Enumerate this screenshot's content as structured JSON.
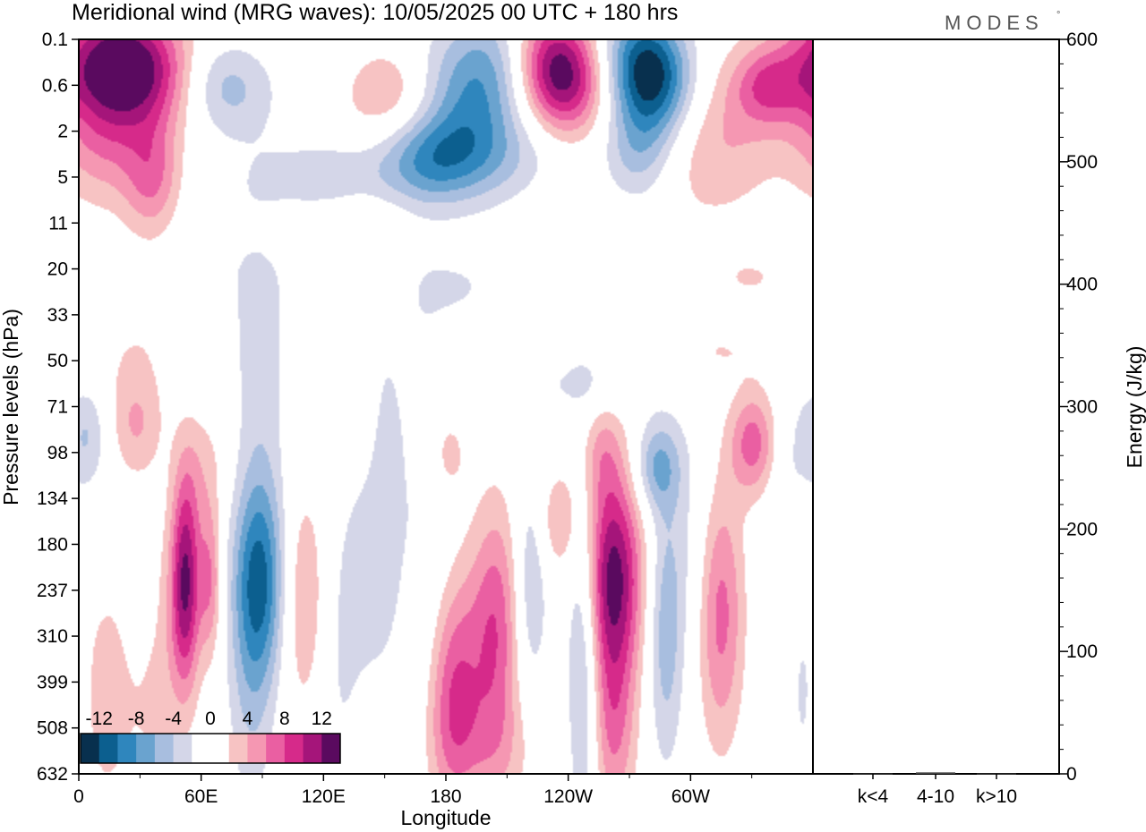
{
  "chart_data": {
    "type": "contour",
    "title": "Meridional wind (MRG waves):  10/05/2025  00 UTC  + 180 hrs",
    "brand": "MODES",
    "brand_mark": "°",
    "xlabel": "Longitude",
    "ylabel": "Pressure levels (hPa)",
    "y2label": "Energy (J/kg)",
    "x_ticks": [
      "0",
      "60E",
      "120E",
      "180",
      "120W",
      "60W"
    ],
    "x_tick_lon": [
      0,
      60,
      120,
      180,
      240,
      300
    ],
    "xlim": [
      0,
      360
    ],
    "y_levels": [
      "0.1",
      "0.6",
      "2",
      "5",
      "11",
      "20",
      "33",
      "50",
      "71",
      "98",
      "134",
      "180",
      "237",
      "310",
      "399",
      "508",
      "632"
    ],
    "energy_ticks": [
      "0",
      "100",
      "200",
      "300",
      "400",
      "500",
      "600"
    ],
    "energy_lim": [
      0,
      600
    ],
    "energy_categories": [
      "k<4",
      "4-10",
      "k>10"
    ],
    "energy_values": [
      0.3,
      1.2,
      0.3
    ],
    "colorbar_labels": [
      "-12",
      "-8",
      "-4",
      "0",
      "4",
      "8",
      "12"
    ],
    "colorbar_colors": [
      "#08304e",
      "#0c5f8f",
      "#2f86bd",
      "#6aa3cf",
      "#a8bedf",
      "#d4d6e8",
      "#ffffff",
      "#ffffff",
      "#f7c3c3",
      "#f597b2",
      "#ea5fa2",
      "#d62a8a",
      "#a5157a",
      "#5a0a5f"
    ],
    "levels_note": "",
    "features": [
      {
        "lon": 22,
        "lev": 0.55,
        "w": 22,
        "h": 0.9,
        "amp": 15,
        "tilt": -0.25
      },
      {
        "lon": 12,
        "lev": 2.2,
        "w": 16,
        "h": 1.0,
        "amp": 5
      },
      {
        "lon": 36,
        "lev": 3.0,
        "w": 10,
        "h": 0.9,
        "amp": 6
      },
      {
        "lon": 70,
        "lev": 1.0,
        "w": 16,
        "h": 0.7,
        "amp": -5,
        "tilt": -0.25
      },
      {
        "lon": 150,
        "lev": 1.0,
        "w": 12,
        "h": 0.6,
        "amp": 3
      },
      {
        "lon": 163,
        "lev": 1.6,
        "w": 30,
        "h": 0.7,
        "amp": 2,
        "tilt": 0.3
      },
      {
        "lon": 194,
        "lev": 1.2,
        "w": 18,
        "h": 1.2,
        "amp": -9,
        "tilt": 0.3
      },
      {
        "lon": 170,
        "lev": 2.6,
        "w": 18,
        "h": 0.7,
        "amp": -6,
        "tilt": 0.25
      },
      {
        "lon": 120,
        "lev": 3.1,
        "w": 18,
        "h": 0.6,
        "amp": -4,
        "tilt": 0.3
      },
      {
        "lon": 236,
        "lev": 0.7,
        "w": 14,
        "h": 0.9,
        "amp": 14,
        "tilt": -0.2
      },
      {
        "lon": 280,
        "lev": 0.7,
        "w": 14,
        "h": 0.9,
        "amp": -14,
        "tilt": -0.2
      },
      {
        "lon": 275,
        "lev": 2.4,
        "w": 12,
        "h": 0.8,
        "amp": -5
      },
      {
        "lon": 315,
        "lev": 2.2,
        "w": 22,
        "h": 1.2,
        "amp": 4,
        "tilt": 0.3
      },
      {
        "lon": 338,
        "lev": 1.0,
        "w": 12,
        "h": 0.6,
        "amp": 6
      },
      {
        "lon": 205,
        "lev": 2.6,
        "w": 26,
        "h": 0.7,
        "amp": -3,
        "tilt": 0.3
      },
      {
        "lon": 120,
        "lev": 4.0,
        "w": 26,
        "h": 0.5,
        "amp": 3,
        "tilt": 0.4
      },
      {
        "lon": 75,
        "lev": 5.2,
        "w": 24,
        "h": 2.5,
        "amp": -2,
        "tilt": 0.2
      },
      {
        "lon": 188,
        "lev": 5.4,
        "w": 18,
        "h": 0.7,
        "amp": -2
      },
      {
        "lon": 240,
        "lev": 4.2,
        "w": 12,
        "h": 0.7,
        "amp": 2
      },
      {
        "lon": 330,
        "lev": 5.2,
        "w": 18,
        "h": 0.5,
        "amp": 2
      },
      {
        "lon": 35,
        "lev": 6.5,
        "w": 24,
        "h": 1.1,
        "amp": 2,
        "tilt": 0.5
      },
      {
        "lon": 245,
        "lev": 7.5,
        "w": 28,
        "h": 0.45,
        "amp": -2,
        "tilt": 0.3
      },
      {
        "lon": 310,
        "lev": 6.8,
        "w": 22,
        "h": 0.45,
        "amp": 2,
        "tilt": 0.3
      },
      {
        "lon": 4,
        "lev": 8.6,
        "w": 7,
        "h": 0.8,
        "amp": -4
      },
      {
        "lon": 28,
        "lev": 8.4,
        "w": 9,
        "h": 0.8,
        "amp": 4
      },
      {
        "lon": 60,
        "lev": 9.2,
        "w": 9,
        "h": 1.0,
        "amp": 3
      },
      {
        "lon": 52,
        "lev": 11.8,
        "w": 5,
        "h": 1.6,
        "amp": 12
      },
      {
        "lon": 64,
        "lev": 11.8,
        "w": 4,
        "h": 1.2,
        "amp": 6
      },
      {
        "lon": 88,
        "lev": 11.8,
        "w": 9,
        "h": 1.6,
        "amp": -10
      },
      {
        "lon": 84,
        "lev": 14.5,
        "w": 8,
        "h": 2.0,
        "amp": -3
      },
      {
        "lon": 110,
        "lev": 12.2,
        "w": 8,
        "h": 1.8,
        "amp": 4
      },
      {
        "lon": 38,
        "lev": 13.5,
        "w": 10,
        "h": 2.0,
        "amp": 3
      },
      {
        "lon": 31,
        "lev": 12.5,
        "w": 6,
        "h": 1.0,
        "amp": -2
      },
      {
        "lon": 140,
        "lev": 11.6,
        "w": 8,
        "h": 1.5,
        "amp": -3
      },
      {
        "lon": 150,
        "lev": 9.6,
        "w": 6,
        "h": 3.0,
        "amp": -2
      },
      {
        "lon": 180,
        "lev": 9.0,
        "w": 8,
        "h": 0.8,
        "amp": 3
      },
      {
        "lon": 190,
        "lev": 13.5,
        "w": 9,
        "h": 1.7,
        "amp": 4
      },
      {
        "lon": 205,
        "lev": 12.8,
        "w": 8,
        "h": 1.9,
        "amp": 7
      },
      {
        "lon": 182,
        "lev": 14.5,
        "w": 8,
        "h": 1.6,
        "amp": 5
      },
      {
        "lon": 200,
        "lev": 15.5,
        "w": 18,
        "h": 1.0,
        "amp": 3
      },
      {
        "lon": 222,
        "lev": 11.8,
        "w": 6,
        "h": 1.8,
        "amp": -4
      },
      {
        "lon": 236,
        "lev": 10.5,
        "w": 8,
        "h": 0.8,
        "amp": 4
      },
      {
        "lon": 248,
        "lev": 13.0,
        "w": 6,
        "h": 3.0,
        "amp": -6
      },
      {
        "lon": 262,
        "lev": 11.7,
        "w": 10,
        "h": 1.6,
        "amp": 13
      },
      {
        "lon": 255,
        "lev": 9.0,
        "w": 8,
        "h": 0.8,
        "amp": 4
      },
      {
        "lon": 262,
        "lev": 15.0,
        "w": 8,
        "h": 1.5,
        "amp": 6
      },
      {
        "lon": 284,
        "lev": 9.3,
        "w": 8,
        "h": 0.7,
        "amp": -6
      },
      {
        "lon": 288,
        "lev": 13.0,
        "w": 6,
        "h": 2.0,
        "amp": -5
      },
      {
        "lon": 315,
        "lev": 12.5,
        "w": 8,
        "h": 2.0,
        "amp": 7
      },
      {
        "lon": 331,
        "lev": 8.8,
        "w": 8,
        "h": 0.8,
        "amp": 7
      },
      {
        "lon": 356,
        "lev": 14.0,
        "w": 4,
        "h": 1.5,
        "amp": -3
      },
      {
        "lon": 355,
        "lev": 11.5,
        "w": 4,
        "h": 1.2,
        "amp": 2
      },
      {
        "lon": 350,
        "lev": 9.5,
        "w": 8,
        "h": 1.4,
        "amp": -2
      },
      {
        "lon": 13,
        "lev": 14.3,
        "w": 9,
        "h": 1.8,
        "amp": 3
      },
      {
        "lon": 167,
        "lev": 9.6,
        "w": 10,
        "h": 3.5,
        "amp": -2
      },
      {
        "lon": 128,
        "lev": 13.8,
        "w": 8,
        "h": 2.2,
        "amp": -2
      },
      {
        "lon": 90,
        "lev": 7.6,
        "w": 8,
        "h": 2.6,
        "amp": -2
      },
      {
        "lon": 300,
        "lev": 11.0,
        "w": 10,
        "h": 2.0,
        "amp": -2
      }
    ]
  }
}
